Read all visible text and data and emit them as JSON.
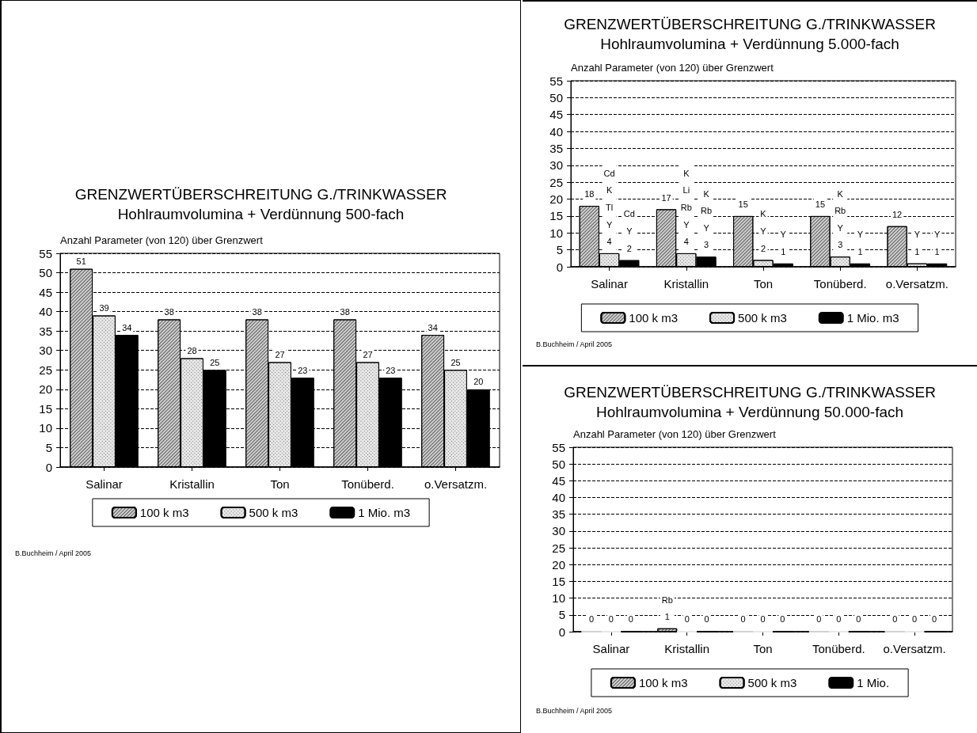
{
  "chart_data": [
    {
      "type": "bar",
      "title": "GRENZWERTÜBERSCHREITUNG G./TRINKWASSER",
      "subtitle": "Hohlraumvolumina + Verdünnung 500-fach",
      "ylabel": "Anzahl Parameter (von 120) über Grenzwert",
      "categories": [
        "Salinar",
        "Kristallin",
        "Ton",
        "Tonüberd.",
        "o.Versatzm."
      ],
      "series": [
        {
          "name": "100 k m3",
          "color": "#d0d0d0",
          "values": [
            51,
            38,
            38,
            38,
            34
          ]
        },
        {
          "name": "500 k m3",
          "color": "#e8e8e8",
          "values": [
            39,
            28,
            27,
            27,
            25
          ]
        },
        {
          "name": "1 Mio. m3",
          "color": "#000000",
          "values": [
            34,
            25,
            23,
            23,
            20
          ]
        }
      ],
      "ylim": [
        0,
        55
      ],
      "yticks": [
        0,
        5,
        10,
        15,
        20,
        25,
        30,
        35,
        40,
        45,
        50,
        55
      ],
      "grid": "y",
      "legend": "bottom",
      "data_labels": true,
      "annotations": [
        "B.Buchheim / April 2005"
      ]
    },
    {
      "type": "bar",
      "title": "GRENZWERTÜBERSCHREITUNG G./TRINKWASSER",
      "subtitle": "Hohlraumvolumina + Verdünnung 5.000-fach",
      "ylabel": "Anzahl Parameter (von 120) über Grenzwert",
      "categories": [
        "Salinar",
        "Kristallin",
        "Ton",
        "Tonüberd.",
        "o.Versatzm."
      ],
      "series": [
        {
          "name": "100 k m3",
          "color": "#d0d0d0",
          "values": [
            18,
            17,
            15,
            15,
            12
          ],
          "value_labels": [
            "18",
            "17",
            "15",
            "15",
            "12"
          ]
        },
        {
          "name": "500 k m3",
          "color": "#e8e8e8",
          "values": [
            4,
            4,
            2,
            3,
            1
          ],
          "value_labels": [
            "Cd\nK\nTl\nY\n4",
            "K\nLi\nRb\nY\n4",
            "K\nY\n2",
            "K\nRb\nY\n3",
            "Y\n1"
          ]
        },
        {
          "name": "1 Mio. m3",
          "color": "#000000",
          "values": [
            2,
            3,
            1,
            1,
            1
          ],
          "value_labels": [
            "Cd\nY\n2",
            "K\nRb\nY\n3",
            "Y\n1",
            "Y\n1",
            "Y\n1"
          ]
        }
      ],
      "ylim": [
        0,
        55
      ],
      "yticks": [
        0,
        5,
        10,
        15,
        20,
        25,
        30,
        35,
        40,
        45,
        50,
        55
      ],
      "grid": "y",
      "legend": "bottom",
      "annotations": [
        "B.Buchheim / April 2005"
      ]
    },
    {
      "type": "bar",
      "title": "GRENZWERTÜBERSCHREITUNG G./TRINKWASSER",
      "subtitle": "Hohlraumvolumina + Verdünnung 50.000-fach",
      "ylabel": "Anzahl Parameter (von 120) über Grenzwert",
      "categories": [
        "Salinar",
        "Kristallin",
        "Ton",
        "Tonüberd.",
        "o.Versatzm."
      ],
      "series": [
        {
          "name": "100 k m3",
          "color": "#d0d0d0",
          "values": [
            0,
            1,
            0,
            0,
            0
          ],
          "value_labels": [
            "0",
            "Rb\n1",
            "0",
            "0",
            "0"
          ]
        },
        {
          "name": "500 k m3",
          "color": "#e8e8e8",
          "values": [
            0,
            0,
            0,
            0,
            0
          ],
          "value_labels": [
            "0",
            "0",
            "0",
            "0",
            "0"
          ]
        },
        {
          "name": "1 Mio.",
          "color": "#000000",
          "values": [
            0,
            0,
            0,
            0,
            0
          ],
          "value_labels": [
            "0",
            "0",
            "0",
            "0",
            "0"
          ]
        }
      ],
      "ylim": [
        0,
        55
      ],
      "yticks": [
        0,
        5,
        10,
        15,
        20,
        25,
        30,
        35,
        40,
        45,
        50,
        55
      ],
      "grid": "y",
      "legend": "bottom",
      "annotations": [
        "B.Buchheim / April 2005"
      ]
    }
  ]
}
